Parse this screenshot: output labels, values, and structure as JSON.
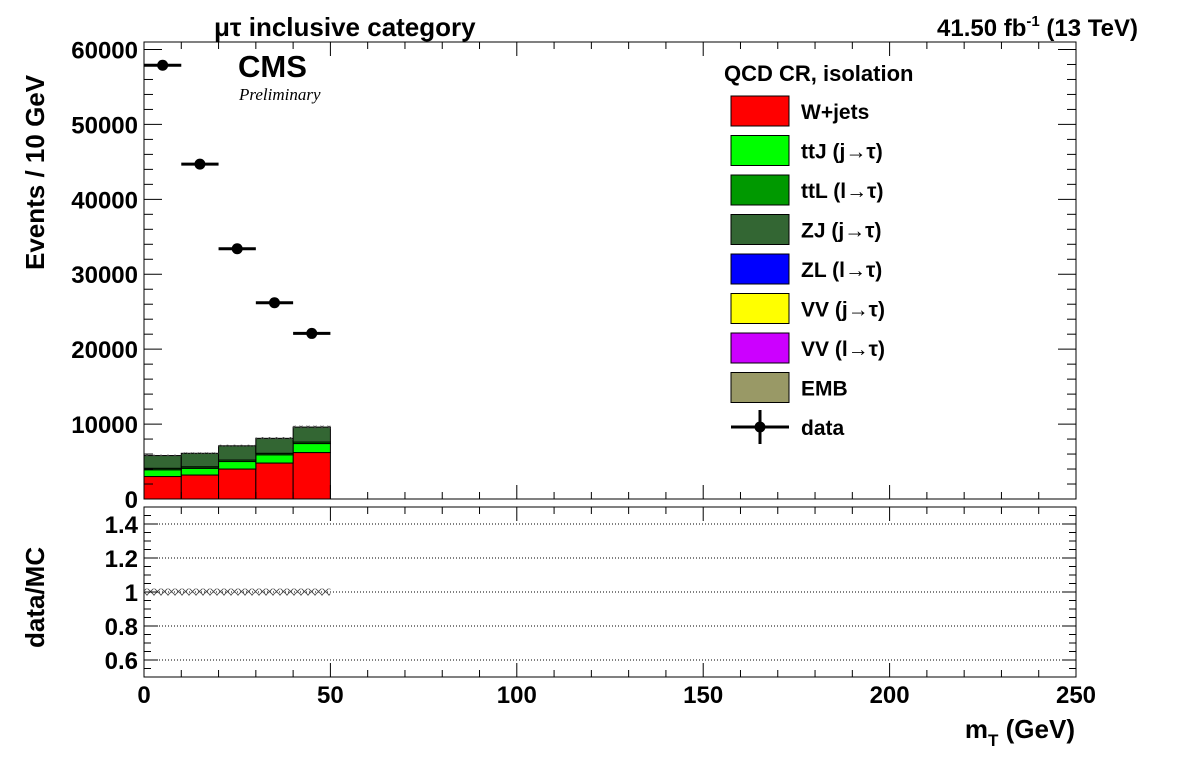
{
  "header": {
    "category": "μτ inclusive category",
    "lumi_value": "41.50 fb",
    "lumi_exp": "-1",
    "energy": " (13 TeV)"
  },
  "cms_label": "CMS",
  "cms_sublabel": "Preliminary",
  "legend": {
    "title": "QCD CR,  isolation",
    "entries": [
      {
        "label": "W+jets",
        "color": "#ff0000",
        "kind": "box"
      },
      {
        "label": "ttJ (j→τ)",
        "color": "#00ff00",
        "kind": "box"
      },
      {
        "label": "ttL (l→τ)",
        "color": "#009900",
        "kind": "box"
      },
      {
        "label": "ZJ (j→τ)",
        "color": "#336633",
        "kind": "box"
      },
      {
        "label": "ZL (l→τ)",
        "color": "#0000ff",
        "kind": "box"
      },
      {
        "label": "VV (j→τ)",
        "color": "#ffff00",
        "kind": "box"
      },
      {
        "label": "VV (l→τ)",
        "color": "#cc00ff",
        "kind": "box"
      },
      {
        "label": "EMB",
        "color": "#999966",
        "kind": "box"
      },
      {
        "label": "data",
        "color": "#000000",
        "kind": "marker"
      }
    ]
  },
  "chart_data": [
    {
      "type": "bar",
      "stacked": true,
      "x_bin_edges": [
        0,
        10,
        20,
        30,
        40,
        50
      ],
      "xlim": [
        0,
        250
      ],
      "ylim": [
        0,
        61000
      ],
      "ylabel": "Events / 10 GeV",
      "y_ticks": [
        0,
        10000,
        20000,
        30000,
        40000,
        50000,
        60000
      ],
      "series": [
        {
          "name": "W+jets",
          "color": "#ff0000",
          "values": [
            3000,
            3200,
            4000,
            4800,
            6200
          ]
        },
        {
          "name": "ttJ (j→τ)",
          "color": "#00ff00",
          "values": [
            900,
            900,
            1000,
            1100,
            1200
          ]
        },
        {
          "name": "ttL (l→τ)",
          "color": "#009900",
          "values": [
            200,
            200,
            200,
            200,
            200
          ]
        },
        {
          "name": "ZJ (j→τ)",
          "color": "#336633",
          "values": [
            1700,
            1800,
            1900,
            2000,
            2000
          ]
        },
        {
          "name": "ZL (l→τ)",
          "color": "#0000ff",
          "values": [
            0,
            0,
            0,
            0,
            0
          ]
        },
        {
          "name": "VV (j→τ)",
          "color": "#ffff00",
          "values": [
            0,
            0,
            0,
            0,
            0
          ]
        },
        {
          "name": "VV (l→τ)",
          "color": "#cc00ff",
          "values": [
            0,
            0,
            0,
            0,
            0
          ]
        },
        {
          "name": "EMB",
          "color": "#999966",
          "values": [
            0,
            0,
            0,
            0,
            0
          ]
        }
      ],
      "data": {
        "name": "data",
        "x": [
          5,
          15,
          25,
          35,
          45
        ],
        "y": [
          57900,
          44700,
          33400,
          26200,
          22100
        ]
      }
    },
    {
      "type": "line",
      "ylabel": "data/MC",
      "xlabel": "m_T (GeV)",
      "xlim": [
        0,
        250
      ],
      "ylim": [
        0.5,
        1.5
      ],
      "y_ticks": [
        0.6,
        0.8,
        1,
        1.2,
        1.4
      ],
      "y_tick_labels": [
        "0.6",
        "0.8",
        "1",
        "1.2",
        "1.4"
      ],
      "x_ticks": [
        0,
        50,
        100,
        150,
        200,
        250
      ],
      "gridlines": [
        0.6,
        0.8,
        1.0,
        1.2,
        1.4
      ],
      "uncertainty_band": {
        "x_range": [
          0,
          50
        ],
        "center": 1.0,
        "half_width": 0.02
      }
    }
  ],
  "xlabel_main": "m",
  "xlabel_sub": "T",
  "xlabel_unit": " (GeV)"
}
